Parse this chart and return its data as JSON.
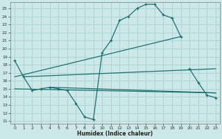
{
  "xlabel": "Humidex (Indice chaleur)",
  "xlim": [
    -0.5,
    23.5
  ],
  "ylim": [
    10.7,
    25.8
  ],
  "yticks": [
    11,
    12,
    13,
    14,
    15,
    16,
    17,
    18,
    19,
    20,
    21,
    22,
    23,
    24,
    25
  ],
  "xticks": [
    0,
    1,
    2,
    3,
    4,
    5,
    6,
    7,
    8,
    9,
    10,
    11,
    12,
    13,
    14,
    15,
    16,
    17,
    18,
    19,
    20,
    21,
    22,
    23
  ],
  "bg_color": "#cce8e8",
  "grid_color": "#aed4d4",
  "line_color": "#1a6e6e",
  "curve1_x": [
    0,
    1,
    2,
    3,
    4,
    5,
    6,
    7,
    8,
    9,
    10,
    11,
    12,
    13,
    14,
    15,
    16,
    17,
    18,
    19
  ],
  "curve1_y": [
    18.5,
    16.5,
    14.8,
    15.0,
    15.2,
    15.0,
    14.8,
    13.2,
    11.5,
    11.2,
    19.5,
    21.0,
    23.5,
    24.0,
    25.0,
    25.5,
    25.5,
    24.2,
    23.8,
    21.5
  ],
  "curve2_x": [
    20,
    21,
    22,
    23
  ],
  "curve2_y": [
    17.5,
    15.8,
    14.2,
    13.9
  ],
  "line1_x": [
    0,
    19
  ],
  "line1_y": [
    16.5,
    21.5
  ],
  "line2_x": [
    1,
    23
  ],
  "line2_y": [
    16.5,
    17.5
  ],
  "line3_x": [
    0,
    23
  ],
  "line3_y": [
    15.0,
    14.5
  ],
  "line4_x": [
    4,
    23
  ],
  "line4_y": [
    15.2,
    14.5
  ]
}
